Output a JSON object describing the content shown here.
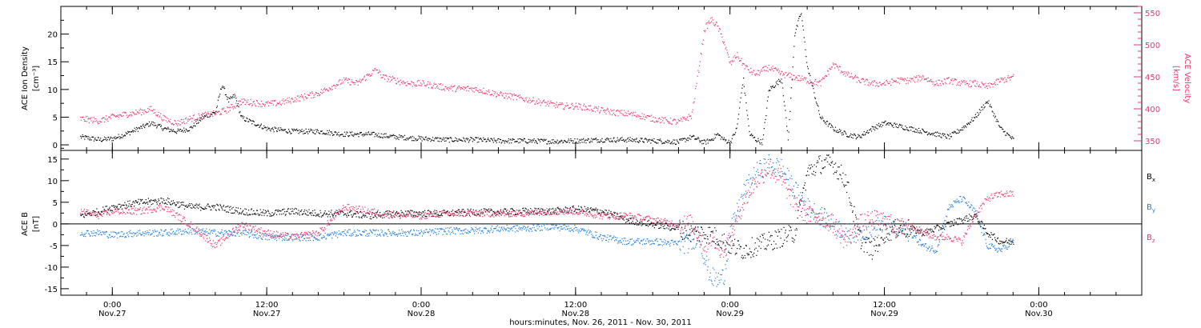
{
  "figure": {
    "xlabel": "hours:minutes, Nov. 26, 2011 - Nov. 30, 2011",
    "x_range_hours": [
      -4,
      80
    ],
    "x_ticks": [
      {
        "h": 0,
        "time": "0:00",
        "day": "Nov.27"
      },
      {
        "h": 12,
        "time": "12:00",
        "day": "Nov.27"
      },
      {
        "h": 24,
        "time": "0:00",
        "day": "Nov.28"
      },
      {
        "h": 36,
        "time": "12:00",
        "day": "Nov.28"
      },
      {
        "h": 48,
        "time": "0:00",
        "day": "Nov.29"
      },
      {
        "h": 60,
        "time": "12:00",
        "day": "Nov.29"
      },
      {
        "h": 72,
        "time": "0:00",
        "day": "Nov.30"
      }
    ],
    "colors": {
      "black": "#000000",
      "pink": "#e8366a",
      "blue": "#1a7ad8"
    }
  },
  "chart_data": [
    {
      "type": "scatter",
      "panel": "top",
      "x_units": "hours since 0:00 Nov.27, 2011",
      "left_axis": {
        "label": "ACE Ion Density",
        "units": "[cm⁻³]",
        "ylim": [
          -1,
          25
        ],
        "ticks": [
          0,
          5,
          10,
          15,
          20
        ]
      },
      "right_axis": {
        "label": "ACE Velocity",
        "units": "[km/s]",
        "ylim": [
          335,
          560
        ],
        "ticks": [
          350,
          400,
          450,
          500,
          550
        ],
        "color": "#e8366a"
      },
      "series": [
        {
          "name": "Ion Density",
          "axis": "left",
          "color": "#000000",
          "x": [
            -2.5,
            -1,
            0,
            1,
            2,
            3,
            4,
            5,
            6,
            7,
            8,
            8.5,
            9,
            9.5,
            10,
            11,
            12,
            14,
            16,
            18,
            20,
            22,
            24,
            26,
            28,
            30,
            32,
            34,
            36,
            38,
            40,
            42,
            44,
            45,
            46,
            46.5,
            47,
            47.5,
            48,
            48.5,
            49,
            49.5,
            50,
            50.5,
            51,
            52,
            52.5,
            53,
            53.5,
            54,
            55,
            56,
            57,
            58,
            59,
            60,
            61,
            62,
            63,
            64,
            65,
            66,
            67,
            68,
            69,
            70
          ],
          "y": [
            1.5,
            1,
            1.2,
            2,
            3,
            4,
            3,
            2.5,
            3,
            5,
            6,
            11,
            8,
            9,
            5,
            4,
            3,
            2.5,
            2.5,
            2,
            2,
            1.5,
            1.2,
            1,
            1,
            0.8,
            0.8,
            0.7,
            0.8,
            1,
            1,
            0.8,
            0.6,
            1.5,
            0.5,
            1,
            2,
            1,
            0.5,
            3,
            12,
            2,
            1,
            0.5,
            10,
            12,
            1,
            20,
            24,
            14,
            5,
            3,
            2,
            1.5,
            3,
            4,
            3.5,
            3,
            2.5,
            2,
            1.5,
            3,
            5,
            8,
            3,
            1
          ]
        },
        {
          "name": "Velocity",
          "axis": "right",
          "color": "#e8366a",
          "x": [
            -2.5,
            -1,
            0,
            1,
            2,
            3,
            4,
            5,
            6,
            7,
            8,
            9,
            10,
            11,
            12,
            13,
            14,
            15,
            16,
            17,
            18,
            19,
            20,
            20.5,
            21,
            22,
            23,
            24,
            25,
            26,
            27,
            28,
            29,
            30,
            31,
            32,
            33,
            34,
            35,
            36,
            37,
            38,
            39,
            40,
            41,
            42,
            43,
            44,
            45,
            46,
            46.5,
            47,
            47.5,
            48,
            48.5,
            49,
            49.5,
            50,
            51,
            52,
            53,
            54,
            55,
            56,
            57,
            58,
            59,
            60,
            61,
            62,
            63,
            64,
            65,
            66,
            67,
            68,
            69,
            70
          ],
          "y": [
            385,
            382,
            388,
            392,
            395,
            400,
            385,
            378,
            385,
            390,
            393,
            400,
            412,
            410,
            408,
            410,
            415,
            420,
            425,
            435,
            445,
            440,
            455,
            462,
            450,
            445,
            440,
            440,
            437,
            433,
            432,
            432,
            428,
            423,
            420,
            416,
            412,
            408,
            405,
            405,
            402,
            398,
            395,
            393,
            390,
            385,
            382,
            380,
            390,
            525,
            540,
            530,
            505,
            470,
            485,
            470,
            460,
            455,
            465,
            455,
            450,
            445,
            440,
            470,
            455,
            445,
            440,
            440,
            445,
            445,
            450,
            440,
            445,
            440,
            440,
            435,
            445,
            450
          ]
        }
      ]
    },
    {
      "type": "scatter",
      "panel": "bottom",
      "x_units": "hours since 0:00 Nov.27, 2011",
      "left_axis": {
        "label": "ACE B",
        "units": "[nT]",
        "ylim": [
          -16.5,
          17
        ],
        "ticks": [
          -15,
          -10,
          -5,
          0,
          5,
          10,
          15
        ]
      },
      "zero_line": true,
      "series": [
        {
          "name": "Bx",
          "legend": "B",
          "legend_sub": "x",
          "color": "#000000",
          "x": [
            -2.5,
            -1,
            0,
            2,
            4,
            6,
            8,
            10,
            12,
            14,
            16,
            18,
            20,
            22,
            24,
            26,
            28,
            30,
            32,
            34,
            36,
            38,
            40,
            42,
            44,
            45,
            46,
            47,
            48,
            49,
            50,
            51,
            52,
            53,
            54,
            55,
            56,
            57,
            58,
            59,
            60,
            61,
            62,
            63,
            64,
            65,
            66,
            67,
            68,
            69,
            70
          ],
          "y": [
            2,
            3,
            4,
            5,
            5.5,
            4,
            4,
            3,
            2.5,
            3,
            2.5,
            2.5,
            2,
            2.5,
            2.5,
            2.5,
            2.8,
            2.8,
            3,
            3,
            3.5,
            3,
            1,
            0,
            -1,
            -2,
            -2,
            -3,
            -5,
            -6,
            -5,
            -4,
            -3,
            -2,
            12,
            14,
            14,
            10,
            -3,
            -6,
            -2,
            -1,
            -1,
            -2,
            -1,
            0,
            1,
            2,
            -2,
            -4,
            -4
          ]
        },
        {
          "name": "By",
          "legend": "B",
          "legend_sub": "y",
          "color": "#1a7ad8",
          "x": [
            -2.5,
            -1,
            0,
            2,
            4,
            6,
            8,
            10,
            12,
            14,
            16,
            18,
            20,
            22,
            24,
            26,
            28,
            30,
            32,
            34,
            36,
            38,
            40,
            42,
            44,
            45,
            45.5,
            46,
            46.5,
            47,
            47.5,
            48,
            49,
            50,
            51,
            52,
            53,
            54,
            55,
            56,
            57,
            58,
            59,
            60,
            61,
            62,
            63,
            64,
            65,
            66,
            67,
            68,
            69,
            70
          ],
          "y": [
            -2,
            -2,
            -2.5,
            -2,
            -2,
            -1.5,
            -2,
            -2,
            -3,
            -3,
            -3,
            -2,
            -2,
            -2,
            -2,
            -1.5,
            -1.5,
            -1,
            -1,
            -0.5,
            -1,
            -3,
            -4,
            -4,
            -4.5,
            -4.5,
            -2,
            -8,
            -12,
            -13,
            -12,
            -2,
            7,
            12,
            14,
            13,
            8,
            4,
            2,
            0,
            -2,
            -2,
            -1,
            0,
            -1,
            -2,
            -5,
            -6,
            4,
            6,
            3,
            -5,
            -6,
            -4
          ]
        },
        {
          "name": "Bz",
          "legend": "B",
          "legend_sub": "z",
          "color": "#e8366a",
          "x": [
            -2.5,
            -1,
            0,
            2,
            4,
            6,
            8,
            10,
            12,
            14,
            16,
            18,
            20,
            22,
            24,
            26,
            28,
            30,
            32,
            34,
            36,
            38,
            40,
            42,
            44,
            45,
            45.5,
            46,
            46.5,
            47,
            47.5,
            48,
            49,
            50,
            51,
            52,
            53,
            54,
            55,
            56,
            57,
            58,
            59,
            60,
            61,
            62,
            63,
            64,
            65,
            66,
            67,
            68,
            69,
            70
          ],
          "y": [
            3,
            2,
            3,
            3,
            4,
            0,
            -5,
            0,
            -2,
            -3,
            -2,
            4,
            3,
            2,
            2,
            2.5,
            2.5,
            2.5,
            2.5,
            3,
            3,
            2,
            2,
            1,
            0,
            0,
            -2,
            -5,
            -3,
            -5,
            -6,
            -3,
            5,
            10,
            13,
            10,
            5,
            2,
            2,
            0,
            -4,
            0,
            1,
            1,
            -1,
            0,
            -2,
            -3,
            -3,
            -4,
            2,
            6,
            7,
            7
          ]
        }
      ]
    }
  ]
}
